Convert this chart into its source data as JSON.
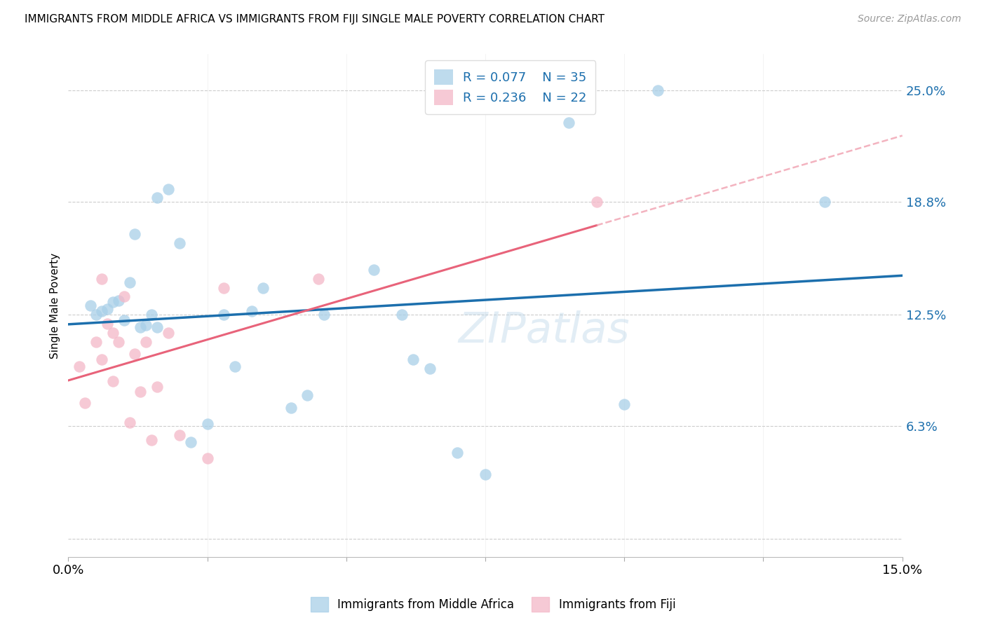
{
  "title": "IMMIGRANTS FROM MIDDLE AFRICA VS IMMIGRANTS FROM FIJI SINGLE MALE POVERTY CORRELATION CHART",
  "source": "Source: ZipAtlas.com",
  "ylabel": "Single Male Poverty",
  "y_ticks": [
    0.0,
    0.063,
    0.125,
    0.188,
    0.25
  ],
  "y_tick_labels": [
    "",
    "6.3%",
    "12.5%",
    "18.8%",
    "25.0%"
  ],
  "xlim": [
    0.0,
    0.15
  ],
  "ylim": [
    -0.01,
    0.27
  ],
  "legend_label1": "Immigrants from Middle Africa",
  "legend_label2": "Immigrants from Fiji",
  "color_blue": "#a8cfe8",
  "color_pink": "#f4b8c8",
  "color_blue_line": "#1c6fad",
  "color_pink_line": "#e8637a",
  "color_pink_dash": "#f0a0b0",
  "blue_x": [
    0.004,
    0.005,
    0.006,
    0.007,
    0.008,
    0.009,
    0.01,
    0.011,
    0.012,
    0.013,
    0.014,
    0.015,
    0.016,
    0.016,
    0.018,
    0.02,
    0.022,
    0.025,
    0.028,
    0.03,
    0.033,
    0.035,
    0.04,
    0.043,
    0.046,
    0.055,
    0.06,
    0.062,
    0.065,
    0.07,
    0.075,
    0.09,
    0.1,
    0.106,
    0.136
  ],
  "blue_y": [
    0.13,
    0.125,
    0.127,
    0.128,
    0.132,
    0.133,
    0.122,
    0.143,
    0.17,
    0.118,
    0.119,
    0.125,
    0.118,
    0.19,
    0.195,
    0.165,
    0.054,
    0.064,
    0.125,
    0.096,
    0.127,
    0.14,
    0.073,
    0.08,
    0.125,
    0.15,
    0.125,
    0.1,
    0.095,
    0.048,
    0.036,
    0.232,
    0.075,
    0.25,
    0.188
  ],
  "pink_x": [
    0.002,
    0.003,
    0.005,
    0.006,
    0.006,
    0.007,
    0.008,
    0.008,
    0.009,
    0.01,
    0.011,
    0.012,
    0.013,
    0.014,
    0.015,
    0.016,
    0.018,
    0.02,
    0.025,
    0.028,
    0.045,
    0.095
  ],
  "pink_y": [
    0.096,
    0.076,
    0.11,
    0.145,
    0.1,
    0.12,
    0.115,
    0.088,
    0.11,
    0.135,
    0.065,
    0.103,
    0.082,
    0.11,
    0.055,
    0.085,
    0.115,
    0.058,
    0.045,
    0.14,
    0.145,
    0.188
  ]
}
